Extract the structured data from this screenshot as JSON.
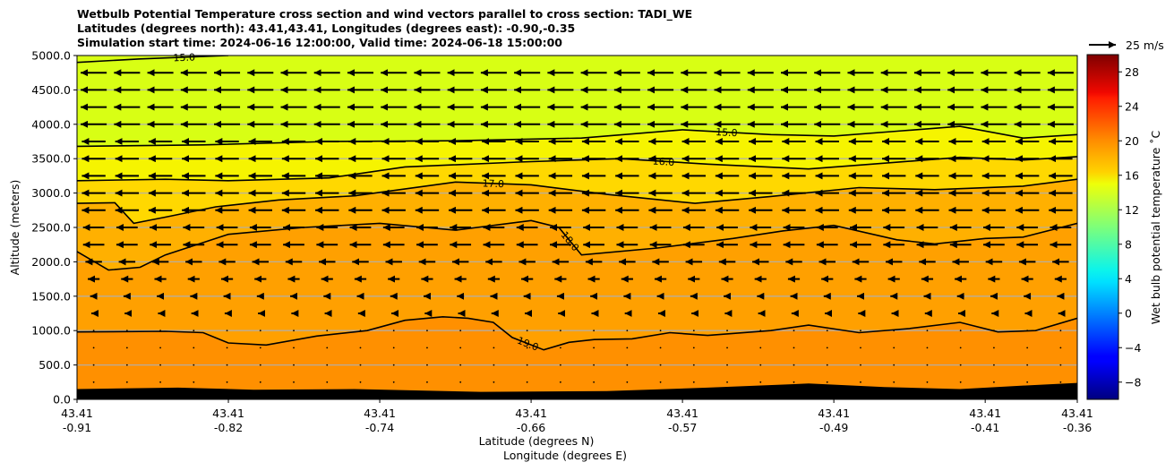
{
  "chart_data": {
    "type": "contour",
    "title_lines": [
      "Wetbulb Potential Temperature cross section and wind vectors parallel to cross section: TADI_WE",
      "Latitudes (degrees north): 43.41,43.41, Longitudes (degrees east): -0.90,-0.35",
      "Simulation start time: 2024-06-16 12:00:00, Valid time: 2024-06-18 15:00:00"
    ],
    "ylabel": "Altitude (meters)",
    "xlabel_lat": "Latitude (degrees N)",
    "xlabel_lon": "Longitude (degrees E)",
    "ylim": [
      0,
      5000
    ],
    "yticks": [
      "0.0",
      "500.0",
      "1000.0",
      "1500.0",
      "2000.0",
      "2500.0",
      "3000.0",
      "3500.0",
      "4000.0",
      "4500.0",
      "5000.0"
    ],
    "xticks": [
      {
        "lat": "43.41",
        "lon": "-0.91"
      },
      {
        "lat": "43.41",
        "lon": "-0.82"
      },
      {
        "lat": "43.41",
        "lon": "-0.74"
      },
      {
        "lat": "43.41",
        "lon": "-0.66"
      },
      {
        "lat": "43.41",
        "lon": "-0.57"
      },
      {
        "lat": "43.41",
        "lon": "-0.49"
      },
      {
        "lat": "43.41",
        "lon": "-0.41"
      },
      {
        "lat": "43.41",
        "lon": "-0.36"
      }
    ],
    "x_positions": [
      0,
      1.2,
      2.4,
      3.6,
      4.8,
      6.0,
      7.2,
      7.93
    ],
    "x_range": [
      0,
      7.93
    ],
    "contours": [
      {
        "level": 15.0,
        "label": "15.0",
        "points": [
          [
            0,
            4900
          ],
          [
            0.5,
            4950
          ],
          [
            1.2,
            5000
          ]
        ]
      },
      {
        "level": 15.0,
        "label": "15.0",
        "points": [
          [
            0,
            3680
          ],
          [
            1.0,
            3700
          ],
          [
            2.0,
            3750
          ],
          [
            3.0,
            3760
          ],
          [
            4.0,
            3800
          ],
          [
            4.8,
            3920
          ],
          [
            5.5,
            3850
          ],
          [
            6.0,
            3830
          ],
          [
            6.5,
            3900
          ],
          [
            7.0,
            3970
          ],
          [
            7.5,
            3800
          ],
          [
            7.93,
            3850
          ]
        ]
      },
      {
        "level": 16.0,
        "label": "16.0",
        "points": [
          [
            0,
            3180
          ],
          [
            0.7,
            3200
          ],
          [
            1.2,
            3180
          ],
          [
            2.0,
            3220
          ],
          [
            2.6,
            3380
          ],
          [
            3.5,
            3450
          ],
          [
            4.3,
            3500
          ],
          [
            5.0,
            3420
          ],
          [
            5.8,
            3350
          ],
          [
            6.3,
            3420
          ],
          [
            7.0,
            3520
          ],
          [
            7.5,
            3480
          ],
          [
            7.93,
            3530
          ]
        ]
      },
      {
        "level": 17.0,
        "label": "17.0",
        "points": [
          [
            0,
            2850
          ],
          [
            0.3,
            2860
          ],
          [
            0.45,
            2560
          ],
          [
            0.7,
            2650
          ],
          [
            1.1,
            2800
          ],
          [
            1.6,
            2900
          ],
          [
            2.2,
            2960
          ],
          [
            3.0,
            3160
          ],
          [
            3.6,
            3120
          ],
          [
            4.2,
            2980
          ],
          [
            4.9,
            2850
          ],
          [
            5.5,
            2950
          ],
          [
            6.2,
            3080
          ],
          [
            6.8,
            3050
          ],
          [
            7.5,
            3100
          ],
          [
            7.93,
            3200
          ]
        ]
      },
      {
        "level": 18.0,
        "label": "18.0",
        "points": [
          [
            0,
            2150
          ],
          [
            0.25,
            1880
          ],
          [
            0.5,
            1920
          ],
          [
            0.7,
            2100
          ],
          [
            1.2,
            2400
          ],
          [
            1.8,
            2500
          ],
          [
            2.4,
            2560
          ],
          [
            3.0,
            2460
          ],
          [
            3.6,
            2600
          ],
          [
            3.82,
            2500
          ],
          [
            4.0,
            2100
          ],
          [
            4.6,
            2200
          ],
          [
            5.2,
            2340
          ],
          [
            5.6,
            2450
          ],
          [
            6.0,
            2530
          ],
          [
            6.5,
            2320
          ],
          [
            6.8,
            2260
          ],
          [
            7.2,
            2340
          ],
          [
            7.5,
            2360
          ],
          [
            7.93,
            2560
          ]
        ]
      },
      {
        "level": 19.0,
        "label": "19.0",
        "points": [
          [
            0,
            980
          ],
          [
            0.7,
            990
          ],
          [
            1.0,
            970
          ],
          [
            1.2,
            820
          ],
          [
            1.5,
            790
          ],
          [
            1.9,
            920
          ],
          [
            2.3,
            1000
          ],
          [
            2.6,
            1150
          ],
          [
            2.9,
            1200
          ],
          [
            3.1,
            1180
          ],
          [
            3.3,
            1120
          ],
          [
            3.45,
            900
          ],
          [
            3.7,
            720
          ],
          [
            3.9,
            830
          ],
          [
            4.1,
            870
          ],
          [
            4.4,
            880
          ],
          [
            4.7,
            970
          ],
          [
            5.0,
            930
          ],
          [
            5.5,
            1000
          ],
          [
            5.8,
            1080
          ],
          [
            6.2,
            970
          ],
          [
            6.6,
            1030
          ],
          [
            7.0,
            1120
          ],
          [
            7.3,
            980
          ],
          [
            7.6,
            1000
          ],
          [
            7.93,
            1180
          ]
        ]
      }
    ],
    "terrain": [
      [
        0,
        150
      ],
      [
        0.8,
        170
      ],
      [
        1.4,
        140
      ],
      [
        2.2,
        150
      ],
      [
        3.2,
        110
      ],
      [
        4.2,
        120
      ],
      [
        5.0,
        170
      ],
      [
        5.8,
        230
      ],
      [
        6.4,
        180
      ],
      [
        7.0,
        150
      ],
      [
        7.5,
        200
      ],
      [
        7.93,
        240
      ]
    ],
    "wind_reference": {
      "label": "25 m/s",
      "speed": 25
    },
    "wind_rows": [
      {
        "altitude": 4750,
        "speed": 11
      },
      {
        "altitude": 4500,
        "speed": 11
      },
      {
        "altitude": 4250,
        "speed": 11
      },
      {
        "altitude": 4000,
        "speed": 11
      },
      {
        "altitude": 3750,
        "speed": 10
      },
      {
        "altitude": 3500,
        "speed": 10
      },
      {
        "altitude": 3250,
        "speed": 10
      },
      {
        "altitude": 3000,
        "speed": 10
      },
      {
        "altitude": 2750,
        "speed": 10
      },
      {
        "altitude": 2500,
        "speed": 9
      },
      {
        "altitude": 2250,
        "speed": 9
      },
      {
        "altitude": 2000,
        "speed": 7
      },
      {
        "altitude": 1750,
        "speed": 5
      },
      {
        "altitude": 1500,
        "speed": 3
      },
      {
        "altitude": 1250,
        "speed": 2
      },
      {
        "altitude": 1000,
        "speed": 1
      },
      {
        "altitude": 750,
        "speed": 1
      },
      {
        "altitude": 500,
        "speed": 1
      },
      {
        "altitude": 250,
        "speed": 1
      }
    ],
    "wind_columns": 30,
    "colorbar": {
      "label": "Wet bulb potential temperature ˚C",
      "range": [
        -10,
        30
      ],
      "ticks": [
        "−8",
        "−4",
        "0",
        "4",
        "8",
        "12",
        "16",
        "20",
        "24",
        "28"
      ],
      "tick_values": [
        -8,
        -4,
        0,
        4,
        8,
        12,
        16,
        20,
        24,
        28
      ]
    },
    "fill_bands": [
      {
        "from": 15.0,
        "to": 16.0,
        "color": "#d8ff14"
      },
      {
        "from": 16.0,
        "to": 17.0,
        "color": "#f6f400"
      },
      {
        "from": 17.0,
        "to": 18.0,
        "color": "#ffd800"
      },
      {
        "from": 18.0,
        "to": 19.0,
        "color": "#ffb000"
      },
      {
        "from": 19.0,
        "to": 20.0,
        "color": "#ff9c00"
      }
    ]
  }
}
